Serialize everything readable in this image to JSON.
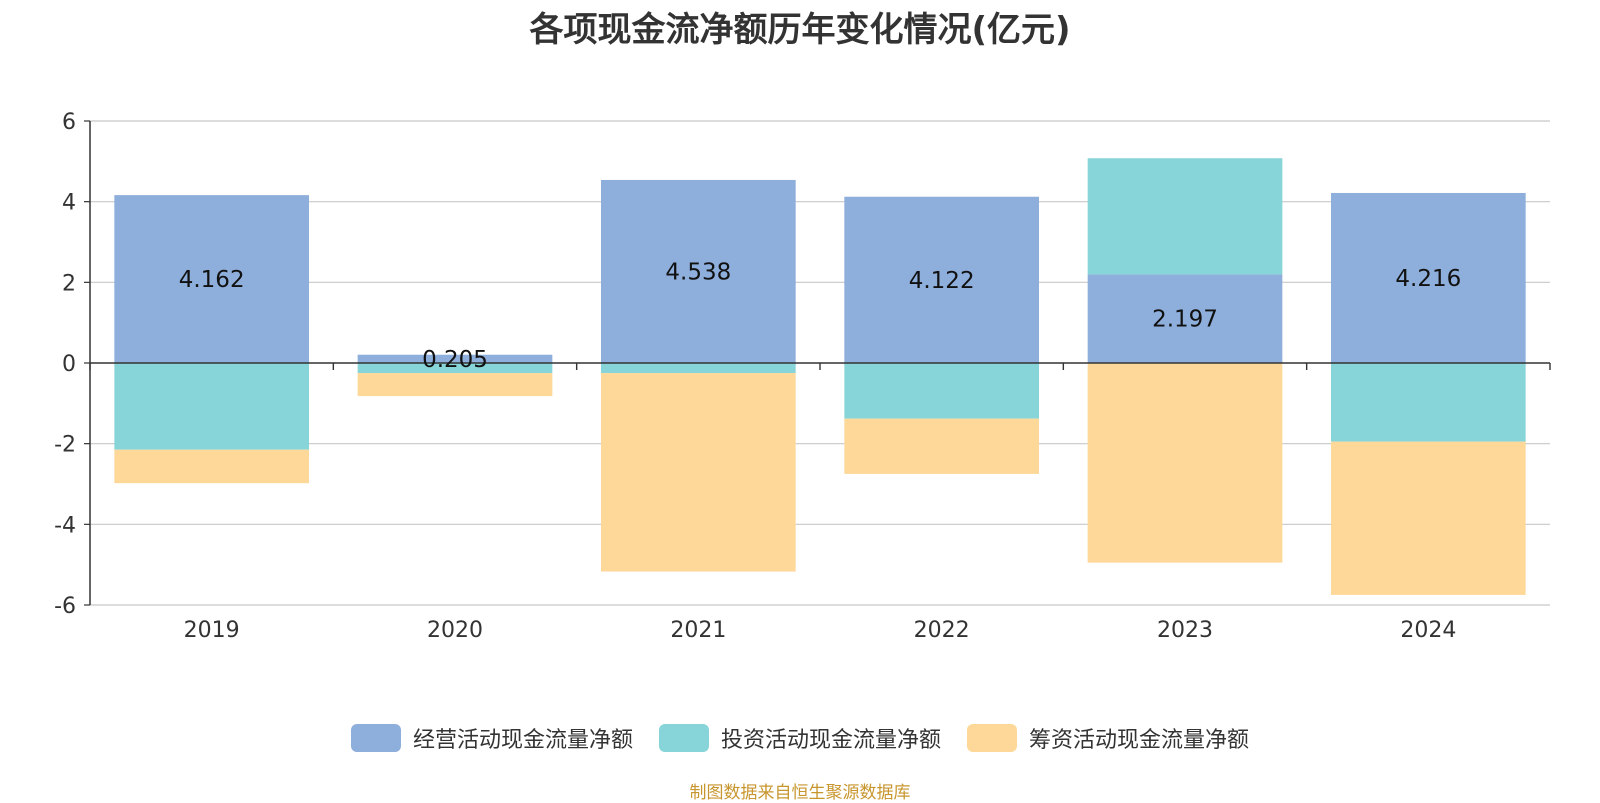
{
  "chart_data": {
    "type": "bar",
    "stacked": true,
    "title": "各项现金流净额历年变化情况(亿元)",
    "categories": [
      "2019",
      "2020",
      "2021",
      "2022",
      "2023",
      "2024"
    ],
    "ylim": [
      -6,
      6
    ],
    "yticks": [
      6,
      4,
      2,
      0,
      -2,
      -4,
      -6
    ],
    "grid": true,
    "legend_position": "bottom",
    "series": [
      {
        "name": "经营活动现金流量净额",
        "color": "#8eaedb",
        "values": [
          4.162,
          0.205,
          4.538,
          4.122,
          2.197,
          4.216
        ]
      },
      {
        "name": "投资活动现金流量净额",
        "color": "#87d5d8",
        "values": [
          -2.15,
          -0.25,
          -0.25,
          -1.38,
          2.88,
          -1.95
        ]
      },
      {
        "name": "筹资活动现金流量净额",
        "color": "#fed899",
        "values": [
          -0.83,
          -0.57,
          -4.92,
          -1.37,
          -4.95,
          -3.8
        ]
      }
    ],
    "data_labels": [
      "4.162",
      "0.205",
      "4.538",
      "4.122",
      "2.197",
      "4.216"
    ]
  },
  "source_note": "制图数据来自恒生聚源数据库"
}
